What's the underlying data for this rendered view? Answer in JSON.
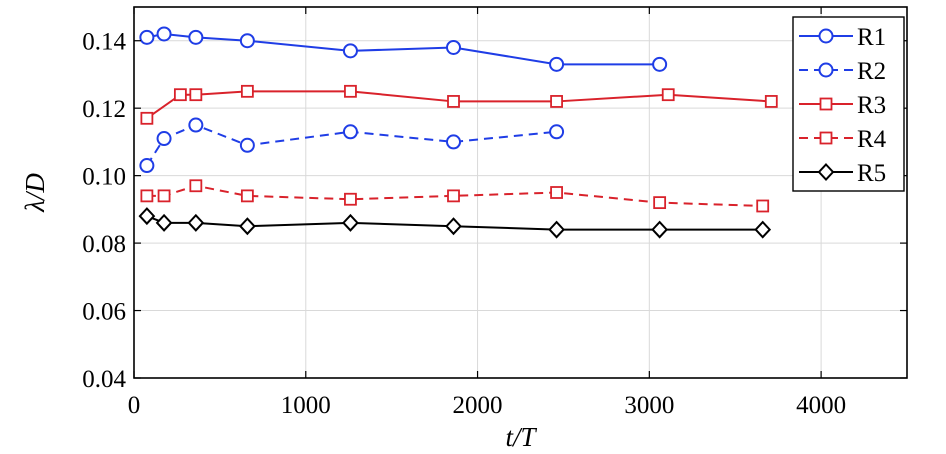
{
  "chart_data": {
    "type": "line",
    "xlabel": "t/T",
    "ylabel": "λ/D",
    "xlim": [
      0,
      4500
    ],
    "ylim": [
      0.04,
      0.15
    ],
    "xticks": [
      0,
      1000,
      2000,
      3000,
      4000
    ],
    "yticks": [
      0.04,
      0.06,
      0.08,
      0.1,
      0.12,
      0.14
    ],
    "xtick_labels": [
      "0",
      "1000",
      "2000",
      "3000",
      "4000"
    ],
    "ytick_labels": [
      "0.04",
      "0.06",
      "0.08",
      "0.10",
      "0.12",
      "0.14"
    ],
    "grid": true,
    "legend_position": "top-right",
    "series": [
      {
        "name": "R1",
        "color": "#1f3de6",
        "line": "solid",
        "marker": "circle",
        "x": [
          75,
          175,
          360,
          660,
          1260,
          1860,
          2460,
          3060
        ],
        "y": [
          0.141,
          0.142,
          0.141,
          0.14,
          0.137,
          0.138,
          0.133,
          0.133
        ]
      },
      {
        "name": "R2",
        "color": "#1f3de6",
        "line": "dashed",
        "marker": "circle",
        "x": [
          75,
          175,
          360,
          660,
          1260,
          1860,
          2460
        ],
        "y": [
          0.103,
          0.111,
          0.115,
          0.109,
          0.113,
          0.11,
          0.113
        ]
      },
      {
        "name": "R3",
        "color": "#d9222b",
        "line": "solid",
        "marker": "square",
        "x": [
          75,
          270,
          360,
          660,
          1260,
          1860,
          2460,
          3110,
          3710
        ],
        "y": [
          0.117,
          0.124,
          0.124,
          0.125,
          0.125,
          0.122,
          0.122,
          0.124,
          0.122
        ]
      },
      {
        "name": "R4",
        "color": "#d9222b",
        "line": "dashed",
        "marker": "square",
        "x": [
          75,
          175,
          360,
          660,
          1260,
          1860,
          2460,
          3060,
          3660
        ],
        "y": [
          0.094,
          0.094,
          0.097,
          0.094,
          0.093,
          0.094,
          0.095,
          0.092,
          0.091
        ]
      },
      {
        "name": "R5",
        "color": "#000000",
        "line": "solid",
        "marker": "diamond",
        "x": [
          75,
          175,
          360,
          660,
          1260,
          1860,
          2460,
          3060,
          3660
        ],
        "y": [
          0.088,
          0.086,
          0.086,
          0.085,
          0.086,
          0.085,
          0.084,
          0.084,
          0.084
        ]
      }
    ]
  }
}
